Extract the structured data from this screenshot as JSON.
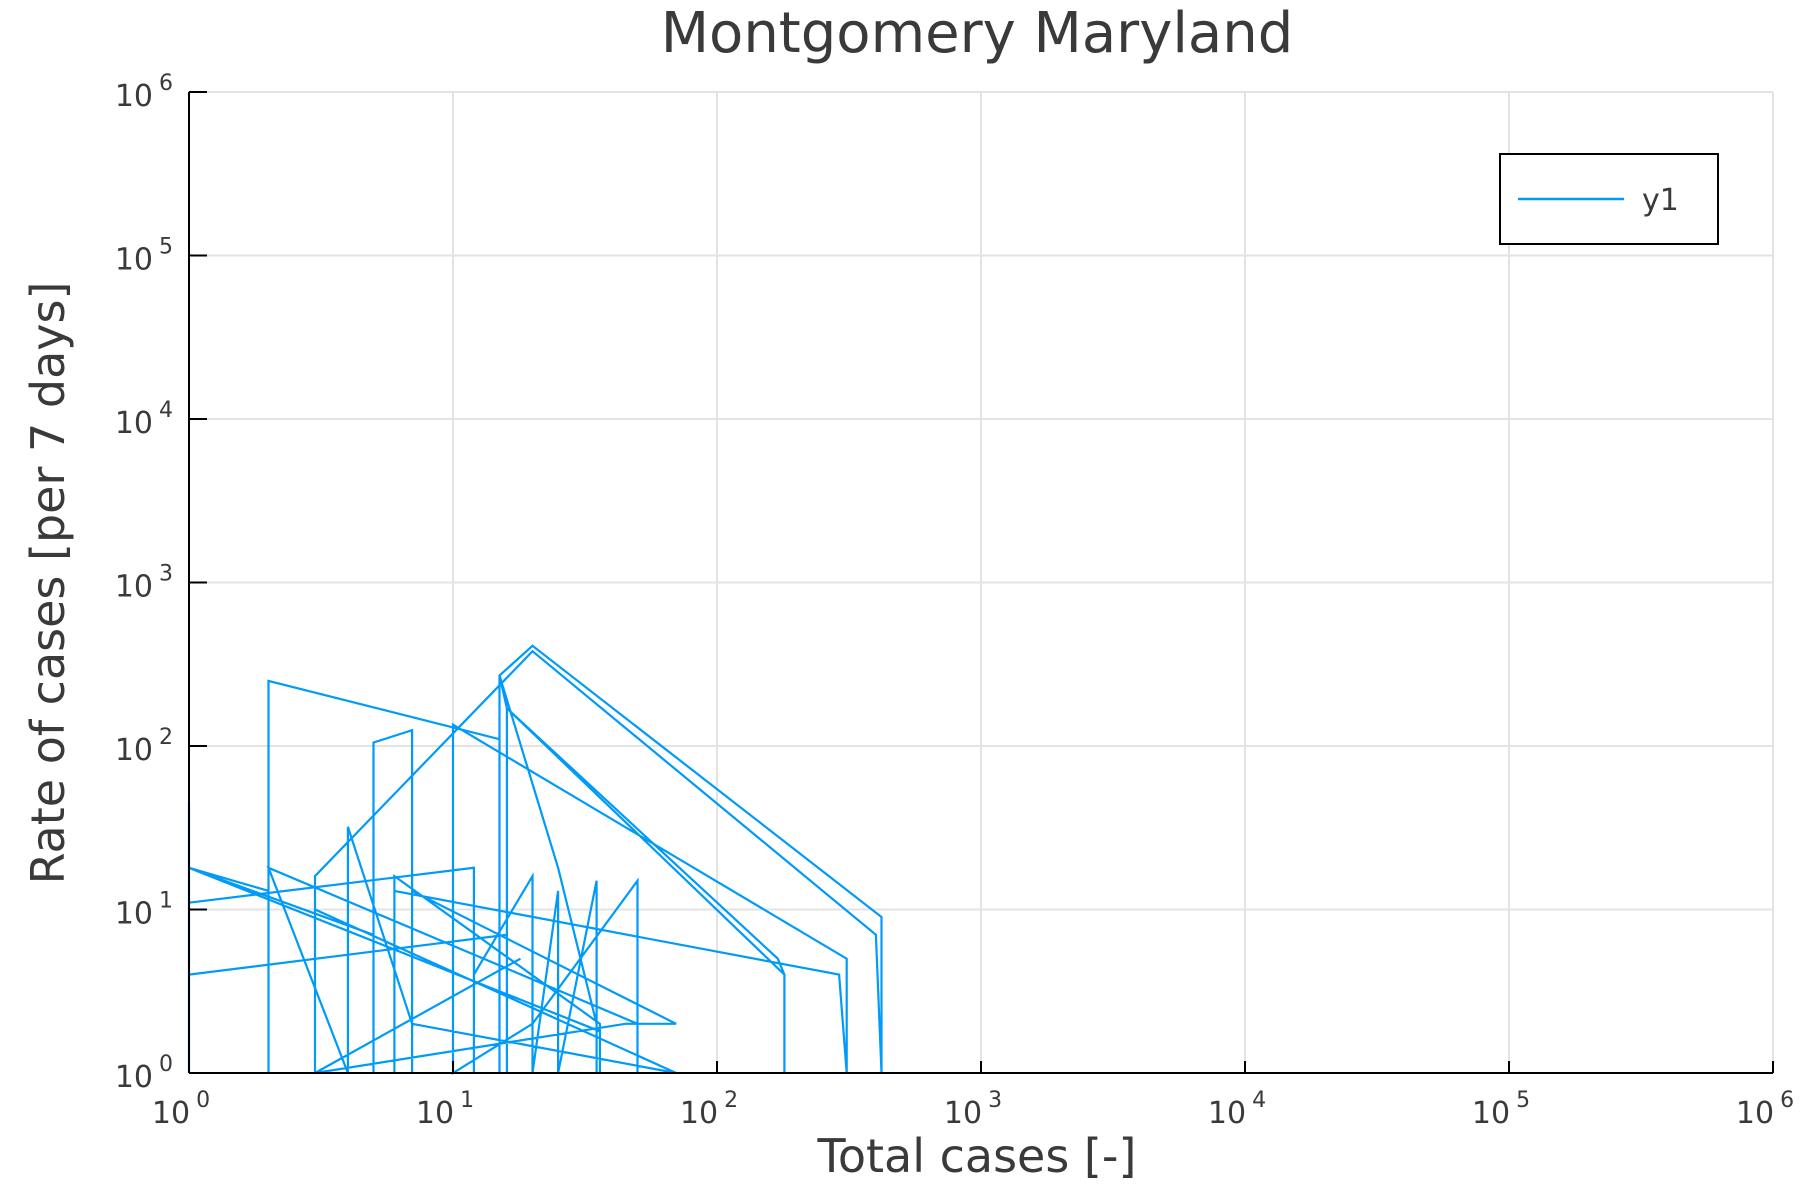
{
  "chart_data": {
    "type": "line",
    "title": "Montgomery Maryland",
    "xlabel": "Total cases [-]",
    "ylabel": "Rate of cases [per 7 days]",
    "xscale": "log",
    "yscale": "log",
    "xlim": [
      1,
      1000000
    ],
    "ylim": [
      1,
      1000000
    ],
    "xticks": [
      {
        "base": "10",
        "exp": "0",
        "value": 1
      },
      {
        "base": "10",
        "exp": "1",
        "value": 10
      },
      {
        "base": "10",
        "exp": "2",
        "value": 100
      },
      {
        "base": "10",
        "exp": "3",
        "value": 1000
      },
      {
        "base": "10",
        "exp": "4",
        "value": 10000
      },
      {
        "base": "10",
        "exp": "5",
        "value": 100000
      },
      {
        "base": "10",
        "exp": "6",
        "value": 1000000
      }
    ],
    "yticks": [
      {
        "base": "10",
        "exp": "0",
        "value": 1
      },
      {
        "base": "10",
        "exp": "1",
        "value": 10
      },
      {
        "base": "10",
        "exp": "2",
        "value": 100
      },
      {
        "base": "10",
        "exp": "3",
        "value": 1000
      },
      {
        "base": "10",
        "exp": "4",
        "value": 10000
      },
      {
        "base": "10",
        "exp": "5",
        "value": 100000
      },
      {
        "base": "10",
        "exp": "6",
        "value": 1000000
      }
    ],
    "grid": true,
    "legend_position": "top-right",
    "series": [
      {
        "name": "y1",
        "color": "#009af9",
        "points": [
          [
            1,
            1
          ],
          [
            1,
            45
          ],
          [
            1,
            18
          ],
          [
            2,
            13
          ],
          [
            2,
            1
          ],
          [
            2,
            100
          ],
          [
            2,
            250
          ],
          [
            15,
            110
          ],
          [
            15,
            1
          ],
          [
            15,
            270
          ],
          [
            25,
            18
          ],
          [
            35,
            2
          ],
          [
            35,
            1
          ],
          [
            35,
            15
          ],
          [
            25,
            1
          ],
          [
            25,
            13
          ],
          [
            20,
            1
          ],
          [
            20,
            16
          ],
          [
            12,
            4
          ],
          [
            12,
            1
          ],
          [
            12,
            18
          ],
          [
            1,
            11
          ],
          [
            1,
            1
          ],
          [
            1,
            4
          ],
          [
            16,
            7
          ],
          [
            16,
            1
          ],
          [
            16,
            170
          ],
          [
            170,
            5
          ],
          [
            180,
            4
          ],
          [
            180,
            1
          ],
          [
            180,
            4
          ],
          [
            16,
            170
          ],
          [
            15,
            270
          ],
          [
            20,
            410
          ],
          [
            420,
            9
          ],
          [
            420,
            1
          ],
          [
            400,
            7
          ],
          [
            20,
            380
          ],
          [
            3,
            16
          ],
          [
            3,
            1
          ],
          [
            3,
            10
          ],
          [
            70,
            1
          ],
          [
            7,
            2
          ],
          [
            4,
            32
          ],
          [
            4,
            1
          ],
          [
            2,
            18
          ],
          [
            50,
            2
          ],
          [
            50,
            1
          ],
          [
            50,
            15
          ],
          [
            20,
            2
          ],
          [
            10,
            1
          ],
          [
            10,
            135
          ],
          [
            310,
            5
          ],
          [
            310,
            1
          ],
          [
            290,
            4
          ],
          [
            6,
            13
          ],
          [
            6,
            1
          ],
          [
            6,
            16
          ],
          [
            36,
            2
          ],
          [
            36,
            1
          ],
          [
            36,
            1.8
          ],
          [
            1,
            18
          ],
          [
            5,
            7
          ],
          [
            5,
            1
          ],
          [
            5,
            105
          ],
          [
            7,
            125
          ],
          [
            7,
            1
          ],
          [
            7,
            13
          ],
          [
            70,
            2
          ],
          [
            45,
            2
          ],
          [
            3,
            1
          ],
          [
            18,
            5
          ]
        ]
      }
    ]
  }
}
